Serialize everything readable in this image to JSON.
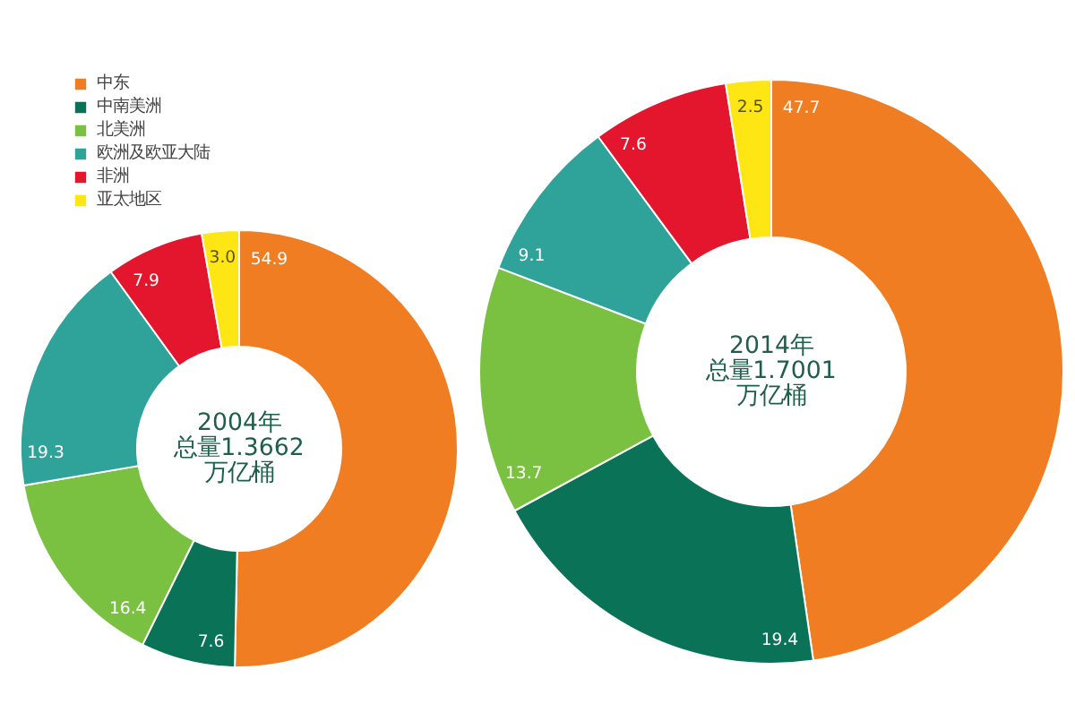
{
  "chart_data": [
    {
      "type": "donut",
      "categories": [
        "中东",
        "中南美洲",
        "北美洲",
        "欧洲及欧亚大陆",
        "非洲",
        "亚太地区"
      ],
      "values": [
        54.9,
        7.6,
        16.4,
        19.3,
        7.9,
        3.0
      ],
      "value_labels": [
        "54.9",
        "7.6",
        "16.4",
        "19.3",
        "7.9",
        "3.0"
      ],
      "colors": [
        "#f07d22",
        "#0a7257",
        "#7ac142",
        "#2fa39a",
        "#e3162e",
        "#fde613"
      ],
      "legend": "top left",
      "annotations": [
        "2004年",
        "总量1.3662",
        "万亿桶"
      ]
    },
    {
      "type": "donut",
      "categories": [
        null,
        null,
        null,
        null,
        null,
        null
      ],
      "values": [
        47.7,
        19.4,
        13.7,
        9.1,
        7.6,
        2.5
      ],
      "value_labels": [
        "47.7",
        "19.4",
        "13.7",
        "9.1",
        "7.6",
        "2.5"
      ],
      "colors": [
        "#f07d22",
        "#0a7257",
        "#7ac142",
        "#2fa39a",
        "#e3162e",
        "#fde613"
      ],
      "annotations": [
        "2014年",
        "总量1.7001",
        "万亿桶"
      ]
    }
  ]
}
